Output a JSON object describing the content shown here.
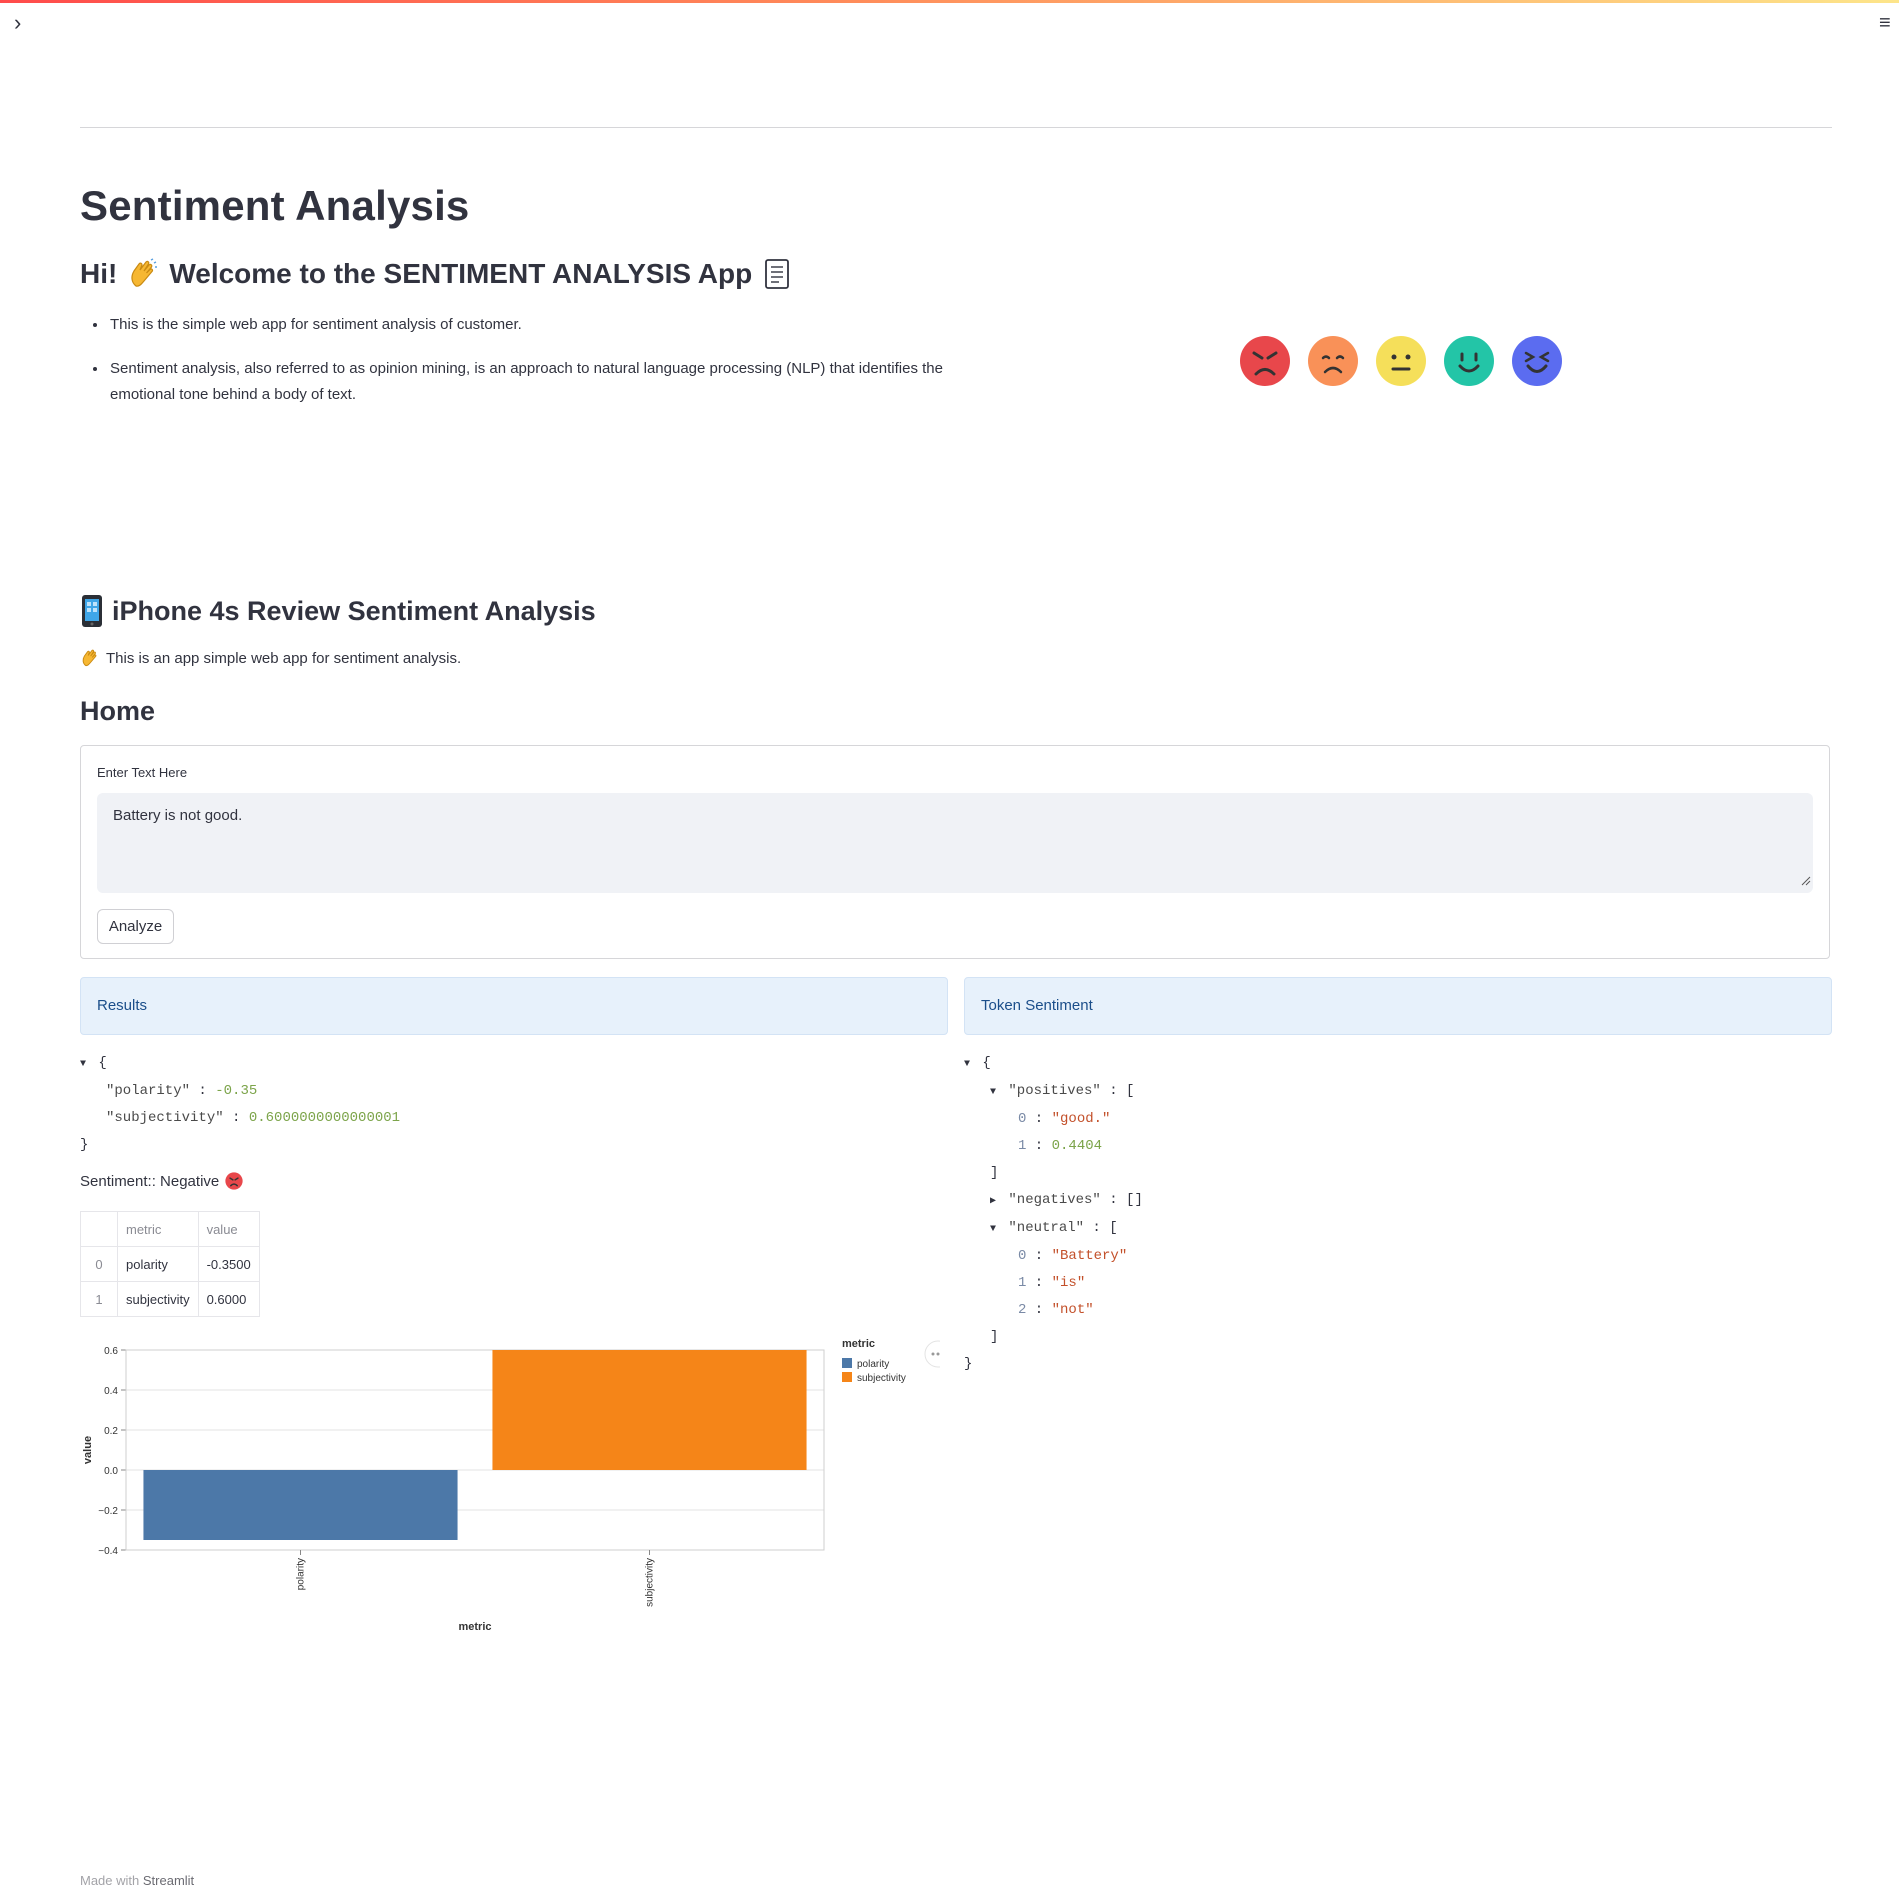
{
  "header": {
    "sidebar_toggle": "›",
    "menu": "≡"
  },
  "title": "Sentiment Analysis",
  "welcome": {
    "prefix": "Hi!",
    "text": "Welcome to the SENTIMENT ANALYSIS App"
  },
  "bullets": [
    "This is the simple web app for sentiment analysis of customer.",
    "Sentiment analysis, also referred to as opinion mining, is an approach to natural language processing (NLP) that identifies the emotional tone behind a body of text."
  ],
  "emoji_faces": [
    {
      "name": "angry-face-icon",
      "color": "#e8474b"
    },
    {
      "name": "sad-face-icon",
      "color": "#f99158"
    },
    {
      "name": "neutral-face-icon",
      "color": "#f5df5a"
    },
    {
      "name": "smile-face-icon",
      "color": "#23c5a7"
    },
    {
      "name": "happy-face-icon",
      "color": "#5b6cf0"
    }
  ],
  "section": {
    "title": "iPhone 4s Review Sentiment Analysis",
    "subtitle": "This is an app simple web app for sentiment analysis."
  },
  "home": {
    "title": "Home",
    "input_label": "Enter Text Here",
    "input_value": "Battery is not good.",
    "analyze_label": "Analyze"
  },
  "results": {
    "title": "Results",
    "json": {
      "polarity_key": "\"polarity\"",
      "polarity": "-0.35",
      "subjectivity_key": "\"subjectivity\"",
      "subjectivity": "0.6000000000000001"
    },
    "sentiment_label": "Sentiment:: Negative"
  },
  "token": {
    "title": "Token Sentiment",
    "positives_key": "\"positives\"",
    "positives": [
      "\"good.\"",
      "0.4404"
    ],
    "negatives_key": "\"negatives\"",
    "negatives_value": "[]",
    "neutral_key": "\"neutral\"",
    "neutral": [
      "\"Battery\"",
      "\"is\"",
      "\"not\""
    ]
  },
  "table": {
    "headers": [
      "",
      "metric",
      "value"
    ],
    "rows": [
      {
        "index": "0",
        "metric": "polarity",
        "value": "-0.3500"
      },
      {
        "index": "1",
        "metric": "subjectivity",
        "value": "0.6000"
      }
    ]
  },
  "chart_data": {
    "type": "bar",
    "categories": [
      "polarity",
      "subjectivity"
    ],
    "values": [
      -0.35,
      0.6
    ],
    "colors": [
      "#4c78a8",
      "#f58518"
    ],
    "xlabel": "metric",
    "ylabel": "value",
    "ylim": [
      -0.4,
      0.6
    ],
    "yticks": [
      "0.6",
      "0.4",
      "0.2",
      "0.0",
      "−0.2",
      "−0.4"
    ],
    "legend_title": "metric",
    "legend": [
      "polarity",
      "subjectivity"
    ],
    "legend_position": "right",
    "grid": true
  },
  "footer": {
    "prefix": "Made with",
    "brand": "Streamlit"
  }
}
